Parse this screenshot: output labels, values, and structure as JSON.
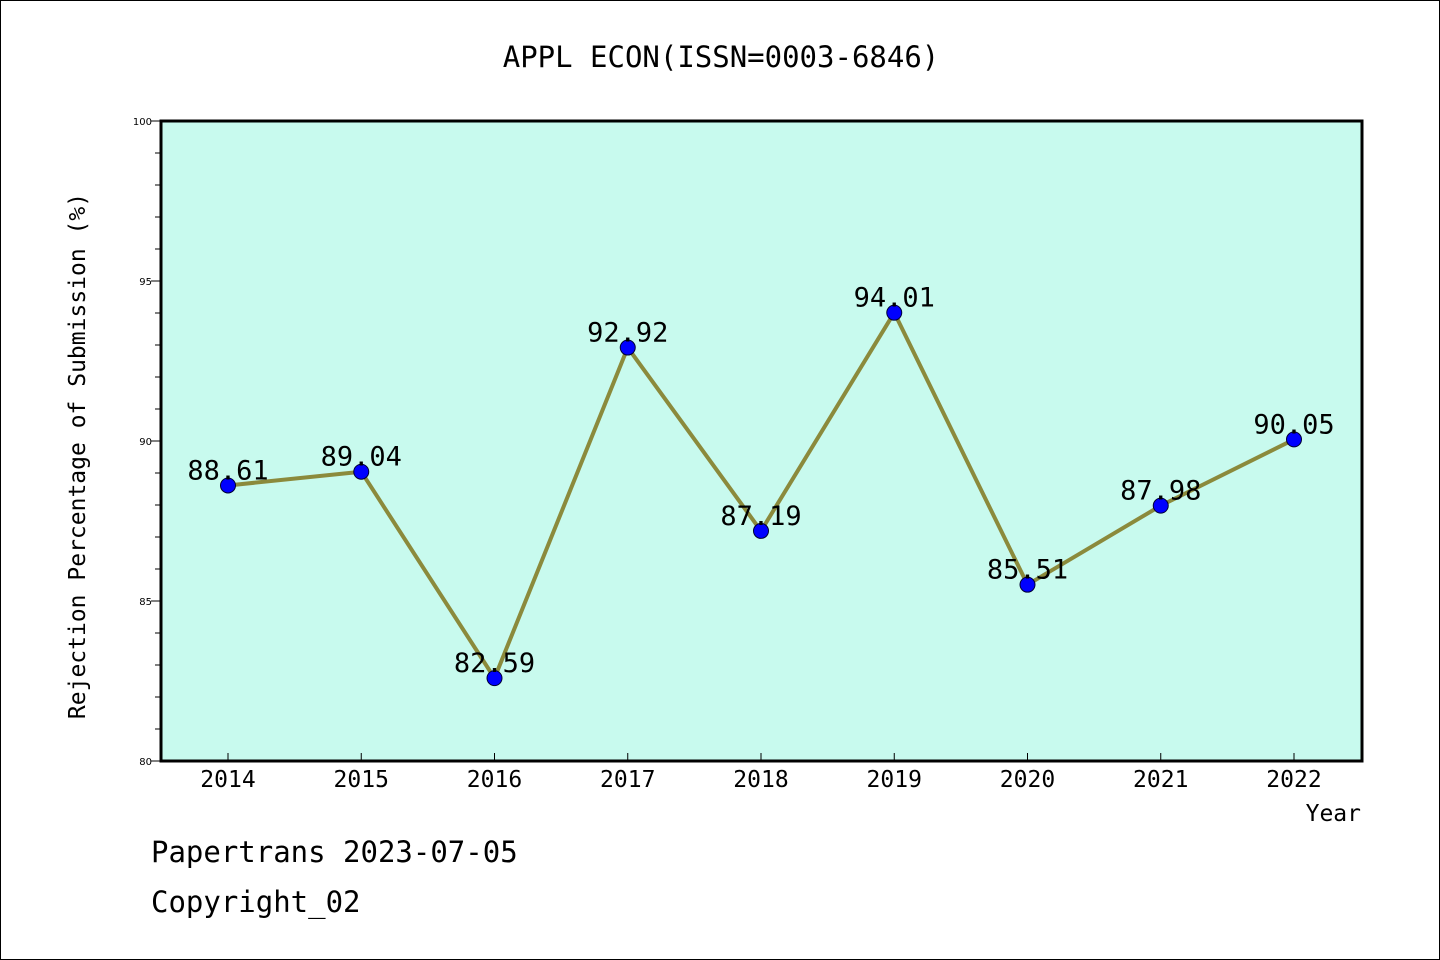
{
  "chart_data": {
    "type": "line",
    "title": "APPL ECON(ISSN=0003-6846)",
    "xlabel": "Year",
    "ylabel": "Rejection Percentage of Submission (%)",
    "categories": [
      "2014",
      "2015",
      "2016",
      "2017",
      "2018",
      "2019",
      "2020",
      "2021",
      "2022"
    ],
    "values": [
      88.61,
      89.04,
      82.59,
      92.92,
      87.19,
      94.01,
      85.51,
      87.98,
      90.05
    ],
    "data_labels": [
      "88.61",
      "89.04",
      "82.59",
      "92.92",
      "87.19",
      "94.01",
      "85.51",
      "87.98",
      "90.05"
    ],
    "ylim": [
      80,
      100
    ],
    "yticks": [
      80,
      85,
      90,
      95,
      100
    ],
    "grid": false,
    "colors": {
      "plot_background": "#c8faee",
      "line": "#8b8a3c",
      "marker": "#0000ff"
    }
  },
  "footer": {
    "line1": "Papertrans 2023-07-05",
    "line2": "Copyright_02"
  }
}
